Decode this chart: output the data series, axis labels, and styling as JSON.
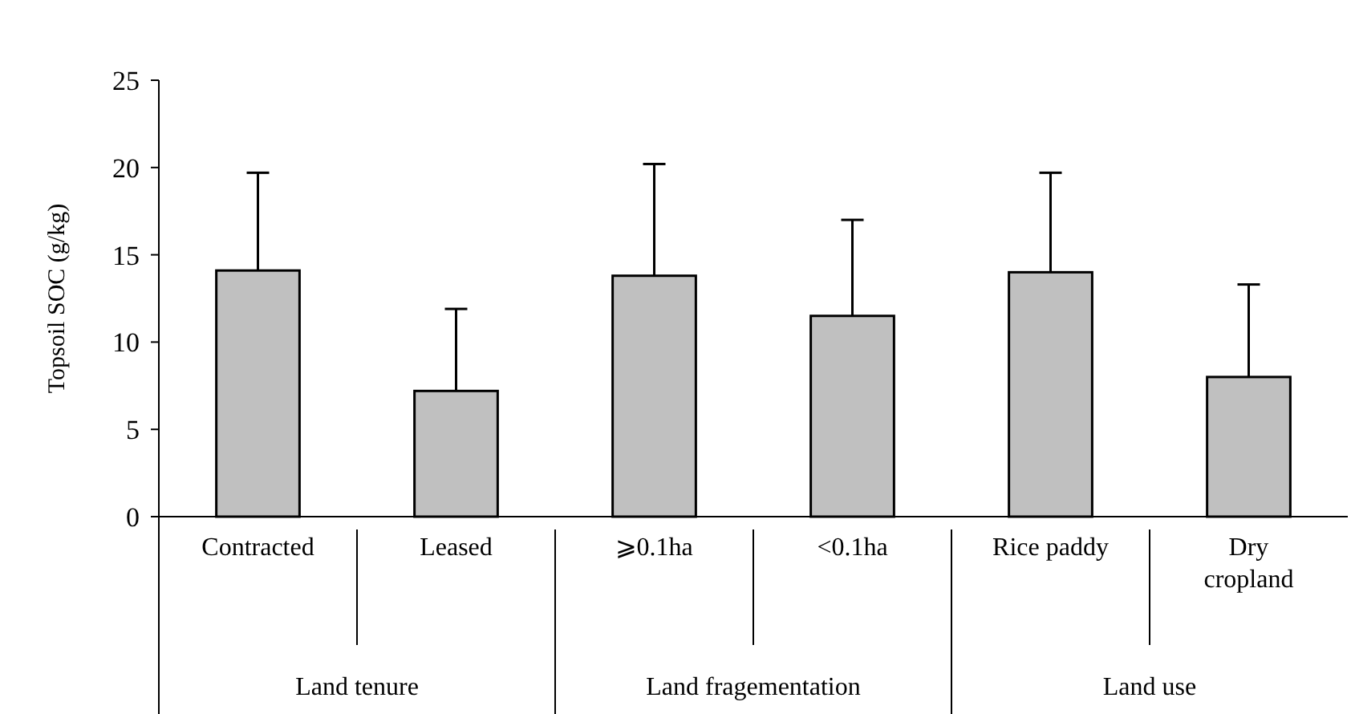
{
  "chart_data": {
    "type": "bar",
    "ylabel": "Topsoil SOC (g/kg)",
    "categories": [
      "Contracted",
      "Leased",
      "⩾0.1ha",
      "<0.1ha",
      "Rice paddy",
      "Dry cropland"
    ],
    "values": [
      14.1,
      7.2,
      13.8,
      11.5,
      14.0,
      8.0
    ],
    "errors": [
      5.6,
      4.7,
      6.4,
      5.5,
      5.7,
      5.3
    ],
    "color": "#c0c0c0",
    "ylim": [
      0,
      25
    ],
    "yticks": [
      0,
      5,
      10,
      15,
      20,
      25
    ],
    "grid": false,
    "annotations": [
      "Land tenure",
      "Land fragementation",
      "Land use"
    ]
  }
}
